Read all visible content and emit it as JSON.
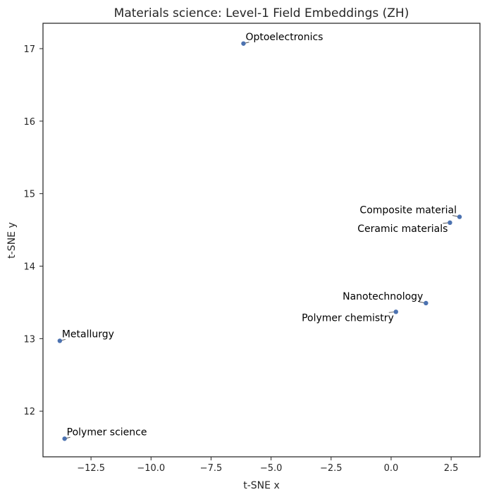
{
  "chart_data": {
    "type": "scatter",
    "title": "Materials science: Level-1 Field Embeddings (ZH)",
    "xlabel": "t-SNE x",
    "ylabel": "t-SNE y",
    "xlim": [
      -14.5,
      3.7
    ],
    "ylim": [
      11.37,
      17.35
    ],
    "grid": false,
    "legend": "none",
    "marker_color": "#4c72b0",
    "xticks": [
      -12.5,
      -10.0,
      -7.5,
      -5.0,
      -2.5,
      0.0,
      2.5
    ],
    "xtick_labels": [
      "−12.5",
      "−10.0",
      "−7.5",
      "−5.0",
      "−2.5",
      "0.0",
      "2.5"
    ],
    "yticks": [
      12,
      13,
      14,
      15,
      16,
      17
    ],
    "ytick_labels": [
      "12",
      "13",
      "14",
      "15",
      "16",
      "17"
    ],
    "points": [
      {
        "label": "Optoelectronics",
        "x": -6.15,
        "y": 17.07,
        "anchor": "right"
      },
      {
        "label": "Composite material",
        "x": 2.85,
        "y": 14.68,
        "anchor": "left"
      },
      {
        "label": "Ceramic materials",
        "x": 2.45,
        "y": 14.6,
        "anchor": "left-below"
      },
      {
        "label": "Nanotechnology",
        "x": 1.45,
        "y": 13.49,
        "anchor": "left"
      },
      {
        "label": "Polymer chemistry",
        "x": 0.2,
        "y": 13.37,
        "anchor": "left-below"
      },
      {
        "label": "Metallurgy",
        "x": -13.8,
        "y": 12.97,
        "anchor": "right"
      },
      {
        "label": "Polymer science",
        "x": -13.6,
        "y": 11.62,
        "anchor": "right"
      }
    ]
  }
}
